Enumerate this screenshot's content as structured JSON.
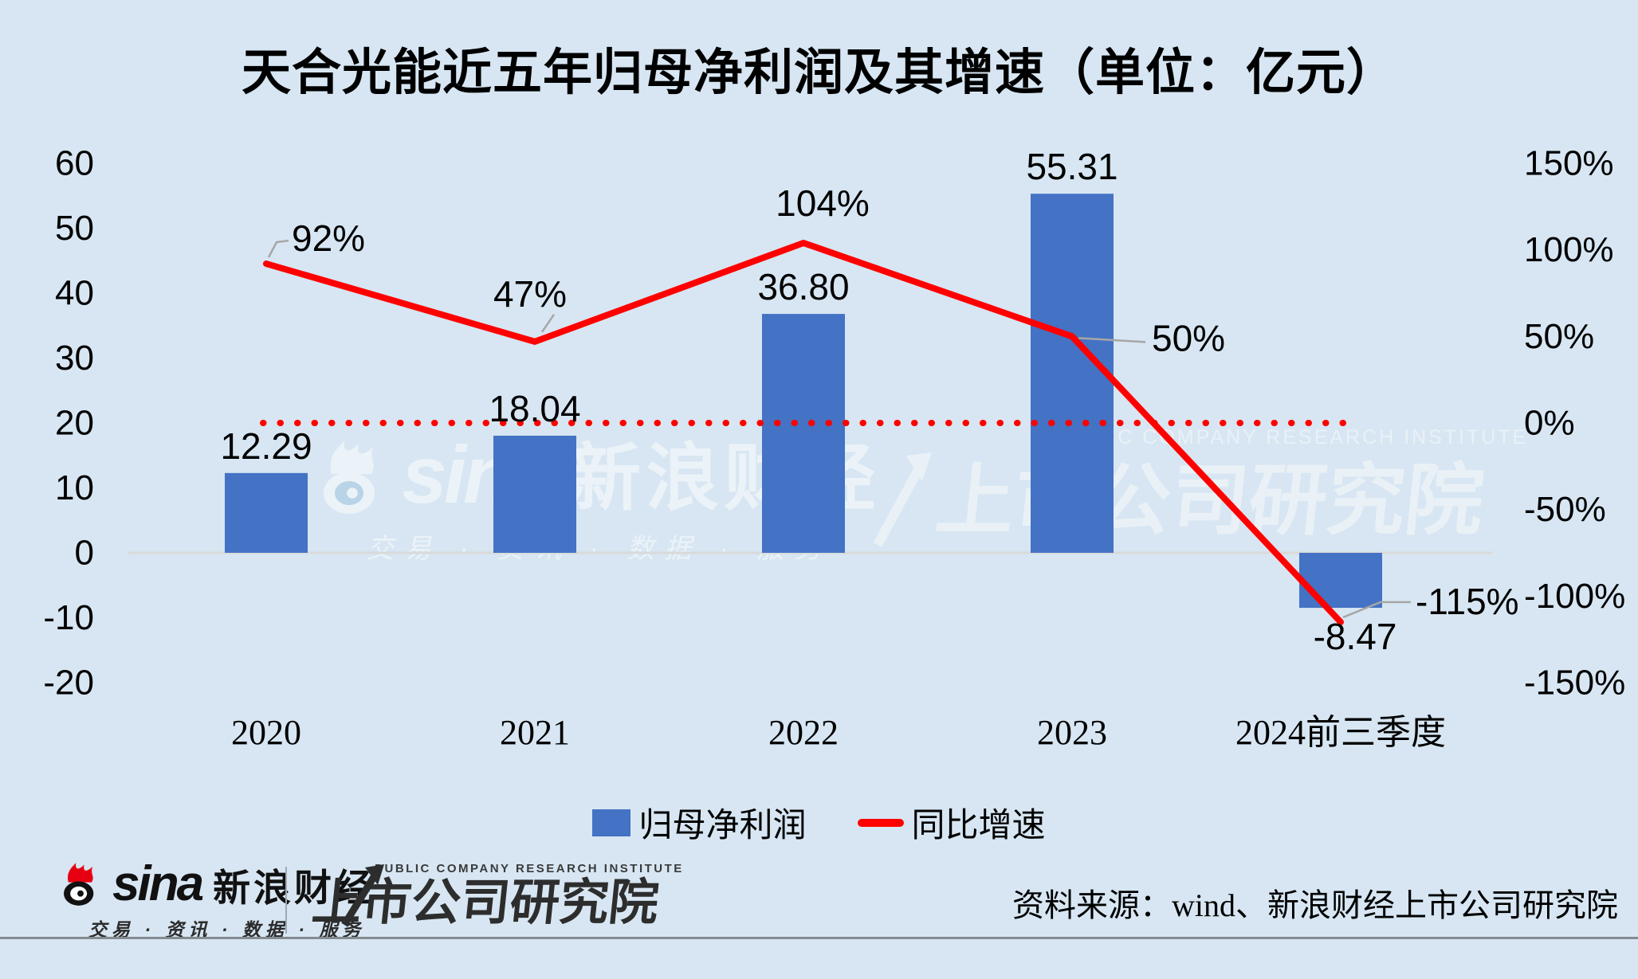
{
  "page": {
    "bg": "#d7e6f2"
  },
  "title": {
    "text": "天合光能近五年归母净利润及其增速（单位：亿元）"
  },
  "chart_data": {
    "type": "bar",
    "subtype": "combo bar + line, dual axis",
    "title": "天合光能近五年归母净利润及其增速（单位：亿元）",
    "categories": [
      "2020",
      "2021",
      "2022",
      "2023",
      "2024前三季度"
    ],
    "series": [
      {
        "name": "归母净利润",
        "type": "bar",
        "axis": "left",
        "unit": "亿元",
        "color": "#4472c4",
        "values": [
          12.29,
          18.04,
          36.8,
          55.31,
          -8.47
        ],
        "labels": [
          "12.29",
          "18.04",
          "36.80",
          "55.31",
          "-8.47"
        ]
      },
      {
        "name": "同比增速",
        "type": "line",
        "axis": "right",
        "unit": "%",
        "color": "#ff0000",
        "values": [
          92,
          47,
          104,
          50,
          -115
        ],
        "labels": [
          "92%",
          "47%",
          "104%",
          "50%",
          "-115%"
        ]
      }
    ],
    "left_axis": {
      "min": -20,
      "max": 60,
      "tick_values": [
        60,
        50,
        40,
        30,
        20,
        10,
        0,
        -10,
        -20
      ],
      "tick_labels": [
        "60",
        "50",
        "40",
        "30",
        "20",
        "10",
        "0",
        "-10",
        "-20"
      ]
    },
    "right_axis": {
      "min": -150,
      "max": 150,
      "tick_values": [
        150,
        100,
        50,
        0,
        -50,
        -100,
        -150
      ],
      "tick_labels": [
        "150%",
        "100%",
        "50%",
        "0%",
        "-50%",
        "-100%",
        "-150%"
      ]
    },
    "reference_line": {
      "axis": "right",
      "value": 0,
      "style": "dotted",
      "color": "#ff0000"
    },
    "zero_line_color": "#d9d9d9",
    "leader_line_color": "#a6a6a6",
    "grid": "zero-line-only",
    "legend_position": "bottom"
  },
  "legend": {
    "items": [
      {
        "label": "归母净利润",
        "marker": "square",
        "color": "#4472c4"
      },
      {
        "label": "同比增速",
        "marker": "line",
        "color": "#ff0000"
      }
    ]
  },
  "watermark": {
    "sina_brand": "sina",
    "sina_name": "新浪财经",
    "sina_tagline": "交易 · 资讯 · 数据 · 服务",
    "pcri_caption": "PUBLIC COMPANY RESEARCH INSTITUTE",
    "pcri_name": "上市公司研究院"
  },
  "footer": {
    "sina_brand": "sina",
    "sina_name": "新浪财经",
    "sina_tagline": "交易 · 资讯 · 数据 · 服务",
    "pcri_caption": "PUBLIC COMPANY RESEARCH INSTITUTE",
    "pcri_name": "上市公司研究院",
    "source": "资料来源：wind、新浪财经上市公司研究院"
  }
}
